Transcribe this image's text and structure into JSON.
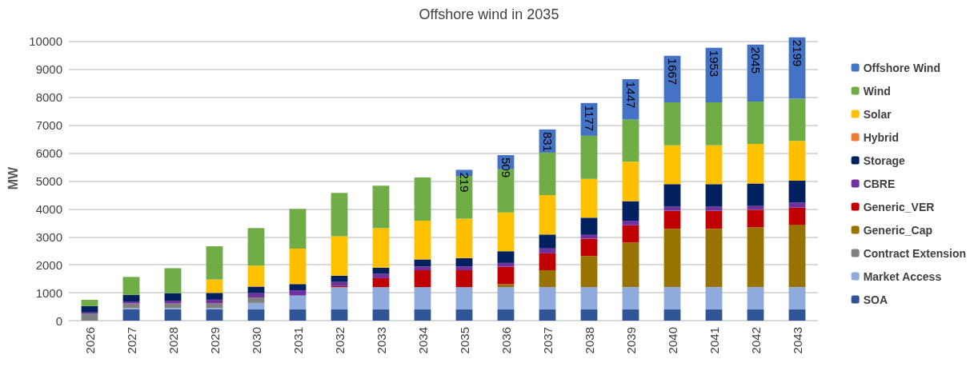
{
  "chart_data": {
    "type": "bar",
    "title": "Offshore wind in 2035",
    "ylabel": "MW",
    "stacked": true,
    "grid": "y",
    "legend": "right",
    "categories": [
      "2026",
      "2027",
      "2028",
      "2029",
      "2030",
      "2031",
      "2032",
      "2033",
      "2034",
      "2035",
      "2036",
      "2037",
      "2038",
      "2039",
      "2040",
      "2041",
      "2042",
      "2043"
    ],
    "ylim": [
      0,
      10200
    ],
    "yticks": [
      0,
      1000,
      2000,
      3000,
      4000,
      5000,
      6000,
      7000,
      8000,
      9000,
      10000
    ],
    "series": [
      {
        "name": "SOA",
        "color": "#2f5597",
        "values": [
          0,
          400,
          400,
          400,
          400,
          400,
          400,
          400,
          400,
          400,
          400,
          400,
          400,
          400,
          400,
          400,
          400,
          400
        ]
      },
      {
        "name": "Market Access",
        "color": "#8faadc",
        "values": [
          0,
          50,
          50,
          50,
          234,
          500,
          800,
          800,
          800,
          800,
          800,
          800,
          800,
          800,
          800,
          800,
          800,
          800
        ]
      },
      {
        "name": "Contract Extension",
        "color": "#808080",
        "values": [
          245,
          165,
          174,
          174,
          195,
          0,
          0,
          0,
          0,
          0,
          0,
          0,
          0,
          0,
          0,
          0,
          0,
          0
        ]
      },
      {
        "name": "Generic_Cap",
        "color": "#997300",
        "values": [
          0,
          0,
          0,
          0,
          0,
          0,
          0,
          0,
          0,
          0,
          107,
          605,
          1112,
          1600,
          2090,
          2090,
          2145,
          2235
        ]
      },
      {
        "name": "Generic_VER",
        "color": "#c00000",
        "values": [
          0,
          0,
          0,
          0,
          0,
          0,
          40,
          320,
          605,
          605,
          625,
          605,
          625,
          615,
          645,
          645,
          625,
          615
        ]
      },
      {
        "name": "CBRE",
        "color": "#7030a0",
        "values": [
          50,
          70,
          90,
          125,
          155,
          185,
          145,
          155,
          135,
          135,
          135,
          175,
          135,
          165,
          145,
          145,
          135,
          175
        ]
      },
      {
        "name": "Storage",
        "color": "#002060",
        "values": [
          225,
          235,
          265,
          245,
          235,
          225,
          225,
          225,
          255,
          300,
          420,
          500,
          615,
          700,
          810,
          810,
          810,
          790
        ]
      },
      {
        "name": "Hybrid",
        "color": "#ed7d31",
        "values": [
          0,
          0,
          0,
          0,
          0,
          0,
          0,
          0,
          0,
          0,
          0,
          0,
          0,
          0,
          0,
          0,
          0,
          0
        ]
      },
      {
        "name": "Solar",
        "color": "#ffc000",
        "values": [
          0,
          0,
          0,
          480,
          750,
          1270,
          1415,
          1415,
          1385,
          1415,
          1385,
          1415,
          1395,
          1415,
          1395,
          1395,
          1415,
          1425
        ]
      },
      {
        "name": "Wind",
        "color": "#70ad47",
        "values": [
          225,
          645,
          900,
          1190,
          1345,
          1425,
          1550,
          1520,
          1550,
          1530,
          1550,
          1520,
          1540,
          1510,
          1540,
          1540,
          1520,
          1510
        ]
      },
      {
        "name": "Offshore Wind",
        "color": "#4472c4",
        "values": [
          null,
          null,
          null,
          null,
          null,
          null,
          null,
          null,
          null,
          219,
          509,
          831,
          1177,
          1447,
          1667,
          1953,
          2045,
          2199
        ],
        "value_labels": [
          null,
          null,
          null,
          null,
          null,
          null,
          null,
          null,
          null,
          "219",
          "509",
          "831",
          "1177",
          "1447",
          "1667",
          "1953",
          "2045",
          "2199"
        ]
      }
    ]
  }
}
